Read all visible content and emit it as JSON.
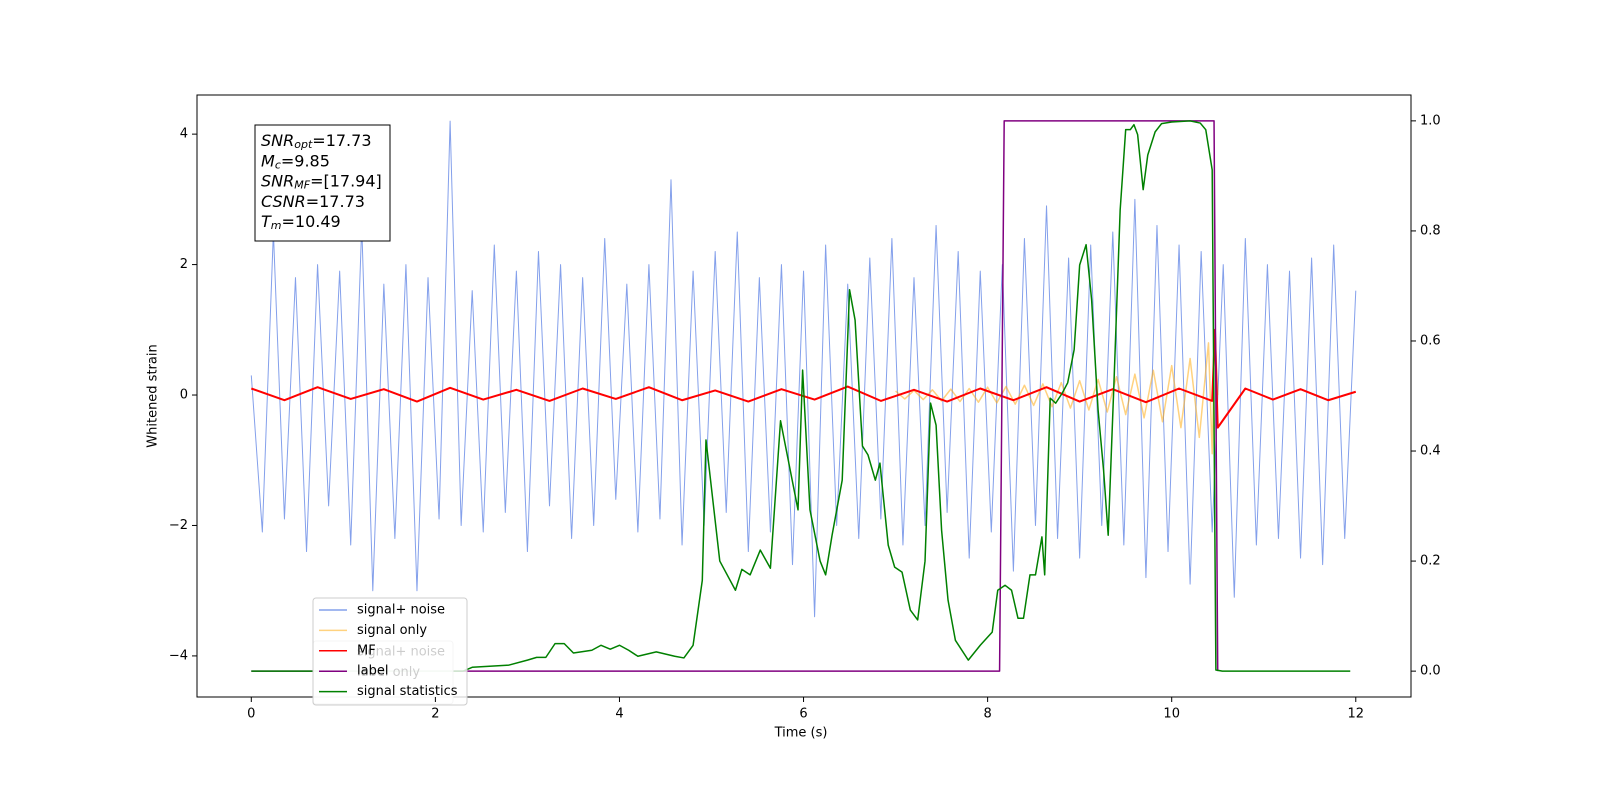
{
  "chart_data": {
    "type": "line",
    "xlabel": "Time (s)",
    "ylabel": "Whitened strain",
    "xlim": [
      -0.59,
      12.6
    ],
    "ylim": [
      -4.63,
      4.6
    ],
    "y2lim": [
      -0.047,
      1.047
    ],
    "xticks": [
      0,
      2,
      4,
      6,
      8,
      10,
      12
    ],
    "yticks": [
      {
        "value": -4,
        "label": "−4"
      },
      {
        "value": -2,
        "label": "−2"
      },
      0,
      2,
      4
    ],
    "y2ticks": [
      {
        "value": 0,
        "label": "0.0"
      },
      0.2,
      0.4,
      0.6,
      0.8,
      {
        "value": 1,
        "label": "1.0"
      }
    ],
    "grid": false,
    "legend": "lower left",
    "series": [
      {
        "name": "signal+ noise",
        "color": "#6f8fe8",
        "x": [
          0,
          0.12,
          0.24,
          0.36,
          0.48,
          0.6,
          0.72,
          0.84,
          0.96,
          1.08,
          1.2,
          1.32,
          1.44,
          1.56,
          1.68,
          1.8,
          1.92,
          2.04,
          2.16,
          2.28,
          2.4,
          2.52,
          2.64,
          2.76,
          2.88,
          3.0,
          3.12,
          3.24,
          3.36,
          3.48,
          3.6,
          3.72,
          3.84,
          3.96,
          4.08,
          4.2,
          4.32,
          4.44,
          4.56,
          4.68,
          4.8,
          4.92,
          5.04,
          5.16,
          5.28,
          5.4,
          5.52,
          5.64,
          5.76,
          5.88,
          6.0,
          6.12,
          6.24,
          6.36,
          6.48,
          6.6,
          6.72,
          6.84,
          6.96,
          7.08,
          7.2,
          7.32,
          7.44,
          7.56,
          7.68,
          7.8,
          7.92,
          8.04,
          8.16,
          8.28,
          8.4,
          8.52,
          8.64,
          8.76,
          8.88,
          9.0,
          9.12,
          9.24,
          9.36,
          9.48,
          9.6,
          9.72,
          9.84,
          9.96,
          10.08,
          10.2,
          10.32,
          10.44,
          10.56,
          10.68,
          10.8,
          10.92,
          11.04,
          11.16,
          11.28,
          11.4,
          11.52,
          11.64,
          11.76,
          11.88,
          12.0
        ],
        "values": [
          0.3,
          -2.1,
          2.5,
          -1.9,
          1.8,
          -2.4,
          2.0,
          -1.7,
          1.9,
          -2.3,
          2.6,
          -3.0,
          1.7,
          -2.2,
          2.0,
          -3.0,
          1.8,
          -1.9,
          4.2,
          -2.0,
          1.6,
          -2.1,
          2.3,
          -1.8,
          1.9,
          -2.4,
          2.2,
          -1.7,
          2.0,
          -2.2,
          1.8,
          -2.0,
          2.4,
          -1.6,
          1.7,
          -2.1,
          2.0,
          -1.9,
          3.3,
          -2.3,
          1.9,
          -2.0,
          2.2,
          -1.8,
          2.5,
          -2.4,
          1.8,
          -2.1,
          2.0,
          -2.6,
          1.9,
          -3.4,
          2.3,
          -2.0,
          1.7,
          -2.2,
          2.1,
          -1.9,
          2.4,
          -2.3,
          1.8,
          -2.0,
          2.6,
          -1.8,
          2.2,
          -2.5,
          1.9,
          -2.1,
          2.0,
          -2.7,
          2.4,
          -2.0,
          2.9,
          -2.2,
          2.1,
          -2.5,
          2.3,
          -2.0,
          2.5,
          -2.3,
          3.0,
          -2.8,
          2.6,
          -2.4,
          2.3,
          -2.9,
          2.2,
          -2.1,
          2.0,
          -3.1,
          2.4,
          -2.3,
          2.0,
          -2.2,
          1.9,
          -2.5,
          2.1,
          -2.6,
          2.3,
          -2.2,
          1.6
        ]
      },
      {
        "name": "signal only",
        "color": "#ffa500",
        "x": [
          7.0,
          7.1,
          7.2,
          7.3,
          7.4,
          7.5,
          7.6,
          7.7,
          7.8,
          7.9,
          8.0,
          8.1,
          8.2,
          8.3,
          8.4,
          8.5,
          8.6,
          8.7,
          8.8,
          8.9,
          9.0,
          9.1,
          9.2,
          9.3,
          9.4,
          9.5,
          9.6,
          9.7,
          9.8,
          9.9,
          10.0,
          10.1,
          10.2,
          10.3,
          10.4,
          10.44,
          10.47,
          10.5
        ],
        "values": [
          0.06,
          -0.06,
          0.07,
          -0.07,
          0.08,
          -0.09,
          0.09,
          -0.1,
          0.1,
          -0.11,
          0.12,
          -0.12,
          0.13,
          -0.14,
          0.15,
          -0.16,
          0.17,
          -0.18,
          0.19,
          -0.2,
          0.22,
          -0.23,
          0.24,
          -0.26,
          0.28,
          -0.3,
          0.32,
          -0.35,
          0.38,
          -0.41,
          0.45,
          -0.5,
          0.56,
          -0.65,
          0.8,
          -0.9,
          1.0,
          0
        ]
      },
      {
        "name": "MF",
        "color": "#ff0000",
        "x": [
          0,
          0.36,
          0.72,
          1.08,
          1.44,
          1.8,
          2.16,
          2.52,
          2.88,
          3.24,
          3.6,
          3.96,
          4.32,
          4.68,
          5.04,
          5.4,
          5.76,
          6.12,
          6.48,
          6.84,
          7.2,
          7.56,
          7.92,
          8.28,
          8.64,
          9.0,
          9.36,
          9.72,
          10.08,
          10.44,
          10.47,
          10.5,
          10.8,
          11.1,
          11.4,
          11.7,
          12.0
        ],
        "values": [
          0.1,
          -0.08,
          0.12,
          -0.06,
          0.09,
          -0.1,
          0.11,
          -0.07,
          0.08,
          -0.09,
          0.1,
          -0.06,
          0.12,
          -0.08,
          0.07,
          -0.1,
          0.09,
          -0.07,
          0.13,
          -0.09,
          0.08,
          -0.1,
          0.1,
          -0.08,
          0.12,
          -0.1,
          0.09,
          -0.11,
          0.1,
          -0.09,
          1.0,
          -0.5,
          0.1,
          -0.07,
          0.09,
          -0.08,
          0.05
        ]
      },
      {
        "name": "label",
        "color": "#800080",
        "axis": "y2",
        "x": [
          0,
          8.13,
          8.18,
          10.46,
          10.5
        ],
        "values": [
          0,
          0,
          1,
          1,
          0
        ]
      },
      {
        "name": "signal statistics",
        "color": "#008000",
        "axis": "y2",
        "x": [
          0,
          2.3,
          2.4,
          2.8,
          3.0,
          3.1,
          3.2,
          3.3,
          3.4,
          3.5,
          3.7,
          3.8,
          3.9,
          4.0,
          4.1,
          4.2,
          4.4,
          4.6,
          4.7,
          4.8,
          4.9,
          4.94,
          5.09,
          5.26,
          5.33,
          5.42,
          5.53,
          5.64,
          5.75,
          5.94,
          5.99,
          6.07,
          6.18,
          6.24,
          6.31,
          6.42,
          6.5,
          6.56,
          6.64,
          6.7,
          6.78,
          6.83,
          6.92,
          6.99,
          7.07,
          7.16,
          7.24,
          7.32,
          7.38,
          7.44,
          7.5,
          7.57,
          7.65,
          7.79,
          7.92,
          8.05,
          8.11,
          8.19,
          8.26,
          8.33,
          8.39,
          8.46,
          8.52,
          8.59,
          8.62,
          8.68,
          8.74,
          8.81,
          8.87,
          8.94,
          9.0,
          9.07,
          9.13,
          9.2,
          9.26,
          9.31,
          9.37,
          9.44,
          9.5,
          9.55,
          9.59,
          9.63,
          9.69,
          9.74,
          9.82,
          9.89,
          10.0,
          10.2,
          10.31,
          10.37,
          10.44,
          10.48,
          10.55,
          11.94
        ],
        "values": [
          0,
          0,
          0.007,
          0.011,
          0.02,
          0.025,
          0.025,
          0.05,
          0.05,
          0.033,
          0.038,
          0.047,
          0.04,
          0.047,
          0.038,
          0.027,
          0.035,
          0.027,
          0.024,
          0.047,
          0.165,
          0.42,
          0.2,
          0.147,
          0.185,
          0.175,
          0.22,
          0.187,
          0.455,
          0.293,
          0.547,
          0.293,
          0.2,
          0.175,
          0.247,
          0.347,
          0.693,
          0.638,
          0.409,
          0.393,
          0.347,
          0.378,
          0.229,
          0.189,
          0.18,
          0.111,
          0.093,
          0.2,
          0.487,
          0.447,
          0.256,
          0.129,
          0.056,
          0.02,
          0.047,
          0.071,
          0.147,
          0.156,
          0.147,
          0.096,
          0.096,
          0.175,
          0.175,
          0.244,
          0.175,
          0.496,
          0.487,
          0.505,
          0.524,
          0.584,
          0.738,
          0.775,
          0.675,
          0.475,
          0.365,
          0.247,
          0.511,
          0.838,
          0.984,
          0.984,
          0.993,
          0.975,
          0.875,
          0.938,
          0.98,
          0.995,
          0.998,
          1.0,
          0.996,
          0.984,
          0.911,
          0.002,
          0,
          0
        ]
      }
    ],
    "legend2": [
      "signal+ noise",
      "label only"
    ],
    "annotation_box": [
      {
        "text": "SNR",
        "sub": "opt",
        "rest": "=17.73"
      },
      {
        "text": "M",
        "sub": "c",
        "rest": "=9.85"
      },
      {
        "text": "SNR",
        "sub": "MF",
        "rest": "=[17.94]"
      },
      {
        "text": "CSNR",
        "rest": "=17.73"
      },
      {
        "text": "T",
        "sub": "m",
        "rest": "=10.49"
      }
    ]
  }
}
